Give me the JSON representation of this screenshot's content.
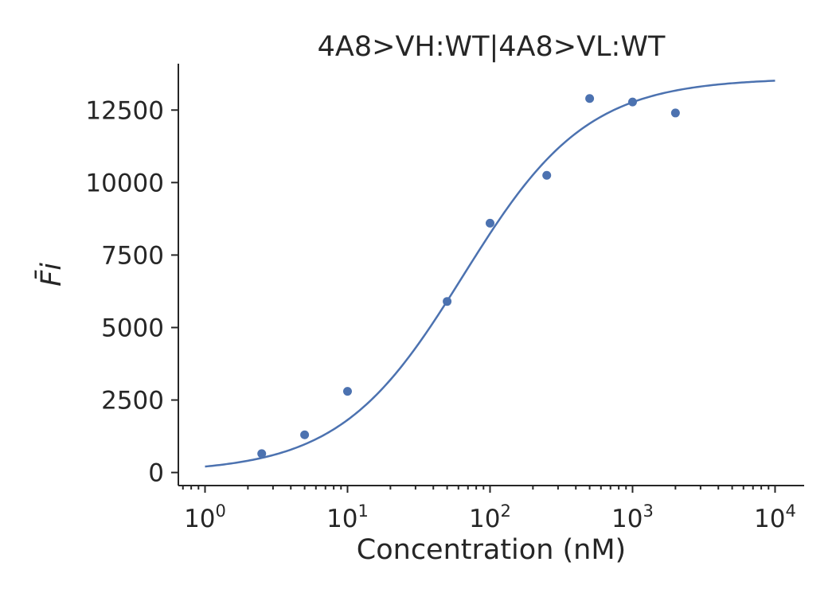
{
  "chart_data": {
    "type": "scatter",
    "title": "4A8>VH:WT|4A8>VL:WT",
    "xlabel": "Concentration (nM)",
    "ylabel": "F̄i",
    "x_scale": "log",
    "xlim": [
      0.65,
      16000
    ],
    "ylim": [
      -450,
      14100
    ],
    "x_ticks": [
      1,
      10,
      100,
      1000,
      10000
    ],
    "x_tick_labels": [
      {
        "base": "10",
        "exp": "0"
      },
      {
        "base": "10",
        "exp": "1"
      },
      {
        "base": "10",
        "exp": "2"
      },
      {
        "base": "10",
        "exp": "3"
      },
      {
        "base": "10",
        "exp": "4"
      }
    ],
    "y_ticks": [
      0,
      2500,
      5000,
      7500,
      10000,
      12500
    ],
    "y_tick_labels": [
      "0",
      "2500",
      "5000",
      "7500",
      "10000",
      "12500"
    ],
    "series": [
      {
        "kind": "points",
        "x": [
          2.5,
          5,
          10,
          50,
          100,
          250,
          500,
          1000,
          2000
        ],
        "y": [
          650,
          1300,
          2800,
          5900,
          8600,
          10250,
          12900,
          12780,
          12400
        ]
      },
      {
        "kind": "fit_line",
        "x_range": [
          1,
          10000
        ],
        "model": {
          "bottom": 0,
          "top": 13600,
          "ec50": 65,
          "hill": 1.0
        }
      }
    ],
    "grid": false,
    "legend": "none",
    "colors": {
      "series": "#4c72b0",
      "axes": "#262626"
    }
  }
}
